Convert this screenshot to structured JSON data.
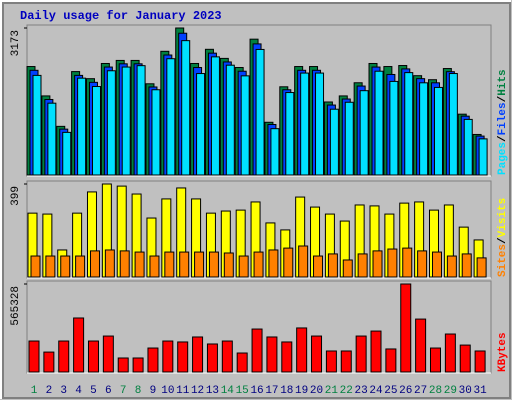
{
  "chart_data": [
    {
      "type": "bar",
      "title": "Daily usage for January 2023",
      "ylim": [
        0,
        3173
      ],
      "yticks": [
        3173
      ],
      "legend_separator": "/",
      "series": [
        {
          "name": "Hits",
          "color": "#008040",
          "values": [
            2341,
            1707,
            1050,
            2232,
            2079,
            2407,
            2473,
            2473,
            1969,
            2670,
            3173,
            2407,
            2713,
            2517,
            2320,
            2932,
            1138,
            1904,
            2341,
            2341,
            1576,
            1707,
            1991,
            2407,
            2341,
            2363,
            2144,
            2057,
            2298,
            1313,
            875
          ]
        },
        {
          "name": "Files",
          "color": "#0040ff",
          "values": [
            2260,
            1630,
            990,
            2150,
            2000,
            2330,
            2400,
            2400,
            1900,
            2590,
            3060,
            2320,
            2630,
            2440,
            2240,
            2830,
            1090,
            1840,
            2260,
            2260,
            1510,
            1640,
            1920,
            2330,
            2170,
            2290,
            2080,
            1990,
            2230,
            1270,
            840
          ]
        },
        {
          "name": "Pages",
          "color": "#00e0ff",
          "values": [
            2150,
            1550,
            920,
            2090,
            1910,
            2250,
            2330,
            2360,
            1840,
            2510,
            2900,
            2190,
            2550,
            2370,
            2140,
            2710,
            1000,
            1780,
            2200,
            2200,
            1420,
            1570,
            1820,
            2240,
            2020,
            2210,
            1990,
            1890,
            2190,
            1200,
            780
          ]
        }
      ]
    },
    {
      "type": "bar",
      "ylim": [
        0,
        399
      ],
      "yticks": [
        399
      ],
      "legend_separator": "/",
      "series": [
        {
          "name": "Visits",
          "color": "#ffff00",
          "values": [
            274,
            270,
            116,
            274,
            365,
            399,
            390,
            356,
            253,
            335,
            382,
            335,
            274,
            283,
            287,
            322,
            232,
            202,
            343,
            300,
            270,
            240,
            309,
            305,
            270,
            317,
            322,
            287,
            309,
            214,
            159
          ]
        },
        {
          "name": "Sites",
          "color": "#ff8000",
          "values": [
            90,
            90,
            90,
            90,
            112,
            116,
            112,
            107,
            90,
            107,
            107,
            107,
            107,
            103,
            90,
            107,
            116,
            124,
            133,
            90,
            99,
            73,
            99,
            112,
            120,
            124,
            112,
            107,
            90,
            99,
            82
          ]
        }
      ]
    },
    {
      "type": "bar",
      "ylim": [
        0,
        565328
      ],
      "yticks": [
        565328
      ],
      "categories": [
        "1",
        "2",
        "3",
        "4",
        "5",
        "6",
        "7",
        "8",
        "9",
        "10",
        "11",
        "12",
        "13",
        "14",
        "15",
        "16",
        "17",
        "18",
        "19",
        "20",
        "21",
        "22",
        "23",
        "24",
        "25",
        "26",
        "27",
        "28",
        "29",
        "30",
        "31"
      ],
      "category_colors": [
        "#008040",
        "#000080",
        "#000080",
        "#000080",
        "#000080",
        "#000080",
        "#008040",
        "#008040",
        "#000080",
        "#000080",
        "#000080",
        "#000080",
        "#000080",
        "#008040",
        "#008040",
        "#000080",
        "#000080",
        "#000080",
        "#000080",
        "#000080",
        "#008040",
        "#008040",
        "#000080",
        "#000080",
        "#000080",
        "#000080",
        "#000080",
        "#008040",
        "#008040",
        "#000080",
        "#000080"
      ],
      "series": [
        {
          "name": "KBytes",
          "color": "#ff0000",
          "values": [
            199000,
            128000,
            199000,
            347000,
            199000,
            231000,
            90000,
            90000,
            154000,
            199000,
            193000,
            225000,
            180000,
            199000,
            122000,
            276000,
            225000,
            193000,
            283000,
            231000,
            135000,
            135000,
            231000,
            263000,
            148000,
            565328,
            340000,
            154000,
            244000,
            173000,
            135000
          ]
        }
      ]
    }
  ]
}
